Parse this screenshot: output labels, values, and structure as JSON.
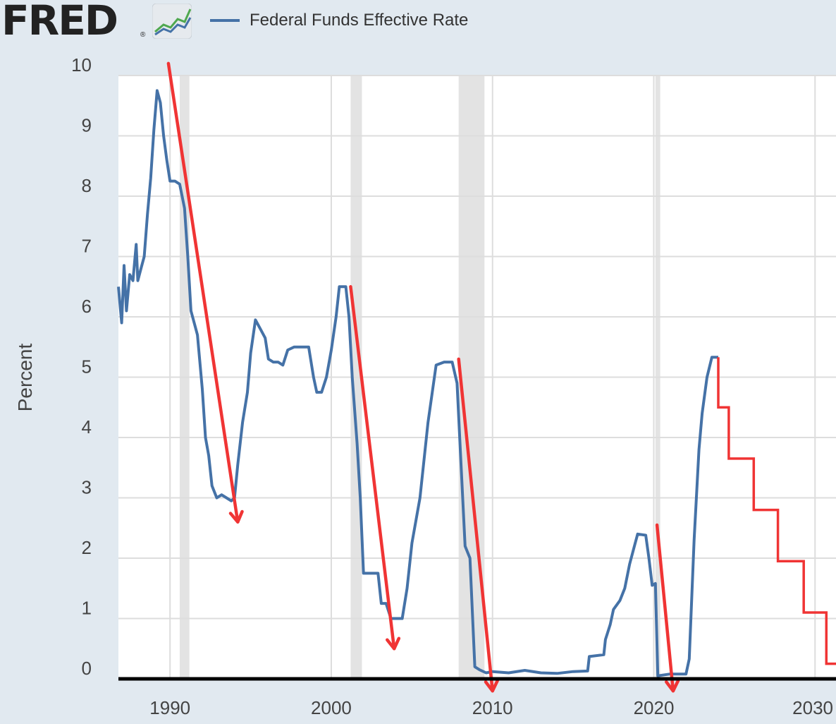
{
  "header": {
    "logo_text": "FRED",
    "logo_mark": "®",
    "logo_icon": "line-chart-icon"
  },
  "colors": {
    "series": "#4572a7",
    "annotation": "#f03434",
    "recession": "#e3e3e3",
    "grid": "#dddddd",
    "plot_bg": "#ffffff",
    "page_bg": "#e1e9f0"
  },
  "chart_data": {
    "type": "line",
    "title": "",
    "xlabel": "",
    "ylabel": "Percent",
    "xlim": [
      1986.8,
      2031.3
    ],
    "ylim": [
      0,
      10
    ],
    "xticks": [
      1990,
      2000,
      2010,
      2020,
      2030
    ],
    "yticks": [
      0,
      1,
      2,
      3,
      4,
      5,
      6,
      7,
      8,
      9,
      10
    ],
    "legend": {
      "position": "top-left",
      "entries": [
        "Federal Funds Effective Rate"
      ]
    },
    "recessions": [
      [
        1990.6,
        1991.2
      ],
      [
        2001.2,
        2001.9
      ],
      [
        2007.9,
        2009.5
      ],
      [
        2020.1,
        2020.4
      ]
    ],
    "series": [
      {
        "name": "Federal Funds Effective Rate",
        "values": [
          [
            1986.8,
            6.5
          ],
          [
            1987.0,
            5.9
          ],
          [
            1987.15,
            6.85
          ],
          [
            1987.3,
            6.1
          ],
          [
            1987.5,
            6.7
          ],
          [
            1987.7,
            6.6
          ],
          [
            1987.9,
            7.2
          ],
          [
            1988.0,
            6.6
          ],
          [
            1988.2,
            6.8
          ],
          [
            1988.4,
            7.0
          ],
          [
            1988.6,
            7.7
          ],
          [
            1988.8,
            8.3
          ],
          [
            1989.0,
            9.1
          ],
          [
            1989.2,
            9.75
          ],
          [
            1989.4,
            9.55
          ],
          [
            1989.6,
            9.0
          ],
          [
            1989.8,
            8.6
          ],
          [
            1990.0,
            8.25
          ],
          [
            1990.3,
            8.25
          ],
          [
            1990.6,
            8.2
          ],
          [
            1990.9,
            7.8
          ],
          [
            1991.1,
            7.0
          ],
          [
            1991.3,
            6.1
          ],
          [
            1991.5,
            5.9
          ],
          [
            1991.7,
            5.7
          ],
          [
            1992.0,
            4.8
          ],
          [
            1992.2,
            4.0
          ],
          [
            1992.4,
            3.7
          ],
          [
            1992.6,
            3.2
          ],
          [
            1992.9,
            3.0
          ],
          [
            1993.2,
            3.05
          ],
          [
            1993.5,
            3.0
          ],
          [
            1993.8,
            2.95
          ],
          [
            1994.0,
            3.0
          ],
          [
            1994.2,
            3.55
          ],
          [
            1994.5,
            4.25
          ],
          [
            1994.8,
            4.75
          ],
          [
            1995.0,
            5.4
          ],
          [
            1995.3,
            5.95
          ],
          [
            1995.6,
            5.8
          ],
          [
            1995.9,
            5.65
          ],
          [
            1996.1,
            5.3
          ],
          [
            1996.4,
            5.25
          ],
          [
            1996.7,
            5.25
          ],
          [
            1997.0,
            5.2
          ],
          [
            1997.3,
            5.45
          ],
          [
            1997.7,
            5.5
          ],
          [
            1998.0,
            5.5
          ],
          [
            1998.3,
            5.5
          ],
          [
            1998.6,
            5.5
          ],
          [
            1998.9,
            5.0
          ],
          [
            1999.1,
            4.75
          ],
          [
            1999.4,
            4.75
          ],
          [
            1999.7,
            5.0
          ],
          [
            2000.0,
            5.45
          ],
          [
            2000.3,
            6.0
          ],
          [
            2000.5,
            6.5
          ],
          [
            2000.9,
            6.5
          ],
          [
            2001.1,
            6.0
          ],
          [
            2001.3,
            5.0
          ],
          [
            2001.6,
            3.9
          ],
          [
            2001.8,
            3.0
          ],
          [
            2002.0,
            1.75
          ],
          [
            2002.3,
            1.75
          ],
          [
            2002.6,
            1.75
          ],
          [
            2002.9,
            1.75
          ],
          [
            2003.1,
            1.25
          ],
          [
            2003.4,
            1.25
          ],
          [
            2003.7,
            1.0
          ],
          [
            2004.0,
            1.0
          ],
          [
            2004.4,
            1.0
          ],
          [
            2004.7,
            1.5
          ],
          [
            2005.0,
            2.25
          ],
          [
            2005.5,
            3.0
          ],
          [
            2006.0,
            4.25
          ],
          [
            2006.5,
            5.2
          ],
          [
            2007.0,
            5.25
          ],
          [
            2007.5,
            5.25
          ],
          [
            2007.8,
            4.9
          ],
          [
            2008.0,
            3.8
          ],
          [
            2008.3,
            2.2
          ],
          [
            2008.6,
            2.0
          ],
          [
            2008.9,
            0.2
          ],
          [
            2009.2,
            0.15
          ],
          [
            2009.6,
            0.1
          ],
          [
            2010.0,
            0.12
          ],
          [
            2011.0,
            0.1
          ],
          [
            2012.0,
            0.14
          ],
          [
            2013.0,
            0.1
          ],
          [
            2014.0,
            0.09
          ],
          [
            2015.0,
            0.12
          ],
          [
            2015.9,
            0.13
          ],
          [
            2016.0,
            0.37
          ],
          [
            2016.9,
            0.4
          ],
          [
            2017.0,
            0.65
          ],
          [
            2017.3,
            0.9
          ],
          [
            2017.5,
            1.15
          ],
          [
            2017.9,
            1.3
          ],
          [
            2018.2,
            1.5
          ],
          [
            2018.5,
            1.9
          ],
          [
            2018.8,
            2.2
          ],
          [
            2019.0,
            2.4
          ],
          [
            2019.5,
            2.38
          ],
          [
            2019.7,
            2.0
          ],
          [
            2019.9,
            1.55
          ],
          [
            2020.1,
            1.58
          ],
          [
            2020.25,
            0.05
          ],
          [
            2021.0,
            0.08
          ],
          [
            2021.5,
            0.08
          ],
          [
            2022.0,
            0.08
          ],
          [
            2022.2,
            0.33
          ],
          [
            2022.5,
            2.3
          ],
          [
            2022.8,
            3.8
          ],
          [
            2023.0,
            4.4
          ],
          [
            2023.3,
            5.0
          ],
          [
            2023.6,
            5.33
          ],
          [
            2024.0,
            5.33
          ]
        ]
      },
      {
        "name": "Projected path (annotation)",
        "step": true,
        "values": [
          [
            2024.0,
            5.33
          ],
          [
            2024.0,
            4.5
          ],
          [
            2024.65,
            4.5
          ],
          [
            2024.65,
            3.65
          ],
          [
            2026.2,
            3.65
          ],
          [
            2026.2,
            2.8
          ],
          [
            2027.7,
            2.8
          ],
          [
            2027.7,
            1.95
          ],
          [
            2029.3,
            1.95
          ],
          [
            2029.3,
            1.1
          ],
          [
            2030.7,
            1.1
          ],
          [
            2030.7,
            0.25
          ],
          [
            2031.3,
            0.25
          ]
        ]
      }
    ],
    "annotations": [
      {
        "type": "arrow",
        "from": [
          1989.9,
          10.2
        ],
        "to": [
          1994.2,
          2.6
        ]
      },
      {
        "type": "arrow",
        "from": [
          2001.2,
          6.5
        ],
        "to": [
          2003.9,
          0.5
        ]
      },
      {
        "type": "arrow",
        "from": [
          2007.9,
          5.3
        ],
        "to": [
          2010.0,
          -0.2
        ]
      },
      {
        "type": "arrow",
        "from": [
          2020.2,
          2.55
        ],
        "to": [
          2021.2,
          -0.2
        ]
      }
    ]
  }
}
